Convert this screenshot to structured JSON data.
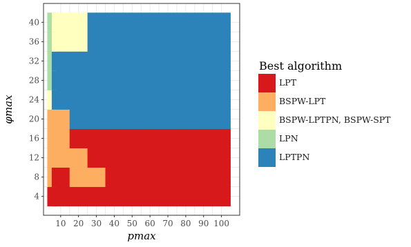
{
  "chart_data": {
    "type": "heatmap",
    "xlabel": "pmax",
    "ylabel": "φmax",
    "x_ticks": [
      10,
      20,
      30,
      40,
      50,
      60,
      70,
      80,
      90,
      100
    ],
    "y_ticks": [
      4,
      8,
      12,
      16,
      20,
      24,
      28,
      32,
      36,
      40
    ],
    "x_step": 10,
    "y_step": 4,
    "grid": true,
    "legend": {
      "title": "Best algorithm",
      "position": "right",
      "entries": [
        {
          "label": "LPT",
          "color": "#d7191c"
        },
        {
          "label": "BSPW-LPT",
          "color": "#fdae61"
        },
        {
          "label": "BSPW-LPTPN, BSPW-SPT",
          "color": "#ffffbf"
        },
        {
          "label": "LPN",
          "color": "#abdda4"
        },
        {
          "label": "LPTPN",
          "color": "#2b83ba"
        }
      ]
    },
    "rows": [
      {
        "y": 4,
        "cells": [
          "LPT",
          "LPT",
          "LPT",
          "LPT",
          "LPT",
          "LPT",
          "LPT",
          "LPT",
          "LPT",
          "LPT",
          "LPT"
        ]
      },
      {
        "y": 8,
        "cells": [
          "BSPW-LPT",
          "LPT",
          "BSPW-LPT",
          "BSPW-LPT",
          "LPT",
          "LPT",
          "LPT",
          "LPT",
          "LPT",
          "LPT",
          "LPT"
        ]
      },
      {
        "y": 12,
        "cells": [
          "BSPW-LPT",
          "BSPW-LPT",
          "BSPW-LPT",
          "LPT",
          "LPT",
          "LPT",
          "LPT",
          "LPT",
          "LPT",
          "LPT",
          "LPT"
        ]
      },
      {
        "y": 16,
        "cells": [
          "BSPW-LPT",
          "BSPW-LPT",
          "LPT",
          "LPT",
          "LPT",
          "LPT",
          "LPT",
          "LPT",
          "LPT",
          "LPT",
          "LPT"
        ]
      },
      {
        "y": 20,
        "cells": [
          "BSPW-LPT",
          "BSPW-LPT",
          "LPTPN",
          "LPTPN",
          "LPTPN",
          "LPTPN",
          "LPTPN",
          "LPTPN",
          "LPTPN",
          "LPTPN",
          "LPTPN"
        ]
      },
      {
        "y": 24,
        "cells": [
          "BSPW-LPTPN, BSPW-SPT",
          "LPTPN",
          "LPTPN",
          "LPTPN",
          "LPTPN",
          "LPTPN",
          "LPTPN",
          "LPTPN",
          "LPTPN",
          "LPTPN",
          "LPTPN"
        ]
      },
      {
        "y": 28,
        "cells": [
          "LPN",
          "LPTPN",
          "LPTPN",
          "LPTPN",
          "LPTPN",
          "LPTPN",
          "LPTPN",
          "LPTPN",
          "LPTPN",
          "LPTPN",
          "LPTPN"
        ]
      },
      {
        "y": 32,
        "cells": [
          "LPN",
          "LPTPN",
          "LPTPN",
          "LPTPN",
          "LPTPN",
          "LPTPN",
          "LPTPN",
          "LPTPN",
          "LPTPN",
          "LPTPN",
          "LPTPN"
        ]
      },
      {
        "y": 36,
        "cells": [
          "LPN",
          "BSPW-LPTPN, BSPW-SPT",
          "BSPW-LPTPN, BSPW-SPT",
          "LPTPN",
          "LPTPN",
          "LPTPN",
          "LPTPN",
          "LPTPN",
          "LPTPN",
          "LPTPN",
          "LPTPN"
        ]
      },
      {
        "y": 40,
        "cells": [
          "LPN",
          "BSPW-LPTPN, BSPW-SPT",
          "BSPW-LPTPN, BSPW-SPT",
          "LPTPN",
          "LPTPN",
          "LPTPN",
          "LPTPN",
          "LPTPN",
          "LPTPN",
          "LPTPN",
          "LPTPN"
        ]
      }
    ],
    "column_x": [
      5,
      10,
      20,
      30,
      40,
      50,
      60,
      70,
      80,
      90,
      100
    ]
  }
}
